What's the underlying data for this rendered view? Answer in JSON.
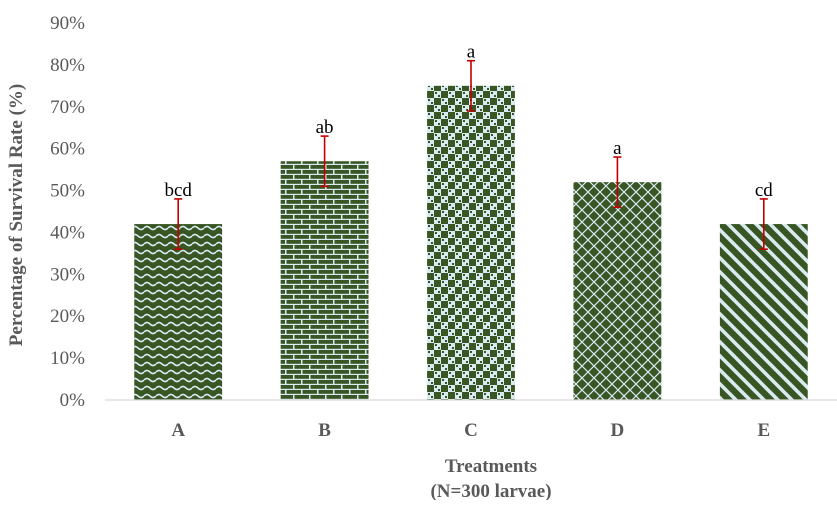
{
  "chart_data": {
    "type": "bar",
    "categories": [
      "A",
      "B",
      "C",
      "D",
      "E"
    ],
    "values": [
      42,
      57,
      75,
      52,
      42
    ],
    "error": [
      6,
      6,
      6,
      6,
      6
    ],
    "data_labels": [
      "bcd",
      "ab",
      "a",
      "a",
      "cd"
    ],
    "xlabel_lines": [
      "Treatments",
      "(N=300 larvae)"
    ],
    "ylabel": "Percentage of Survival Rate (%)",
    "ylim": [
      0,
      90
    ],
    "yticks": [
      0,
      10,
      20,
      30,
      40,
      50,
      60,
      70,
      80,
      90
    ],
    "ytick_labels": [
      "0%",
      "10%",
      "20%",
      "30%",
      "40%",
      "50%",
      "60%",
      "70%",
      "80%",
      "90%"
    ],
    "grid": false,
    "legend": "none",
    "colors": {
      "bar": "#375623",
      "bar_pattern_light": "#dbe9f1",
      "error_bar": "#c00000",
      "axis": "#d9d9d9",
      "text": "#595959"
    },
    "bar_patterns": [
      "wave",
      "brick",
      "check",
      "diamond",
      "stripe"
    ]
  }
}
